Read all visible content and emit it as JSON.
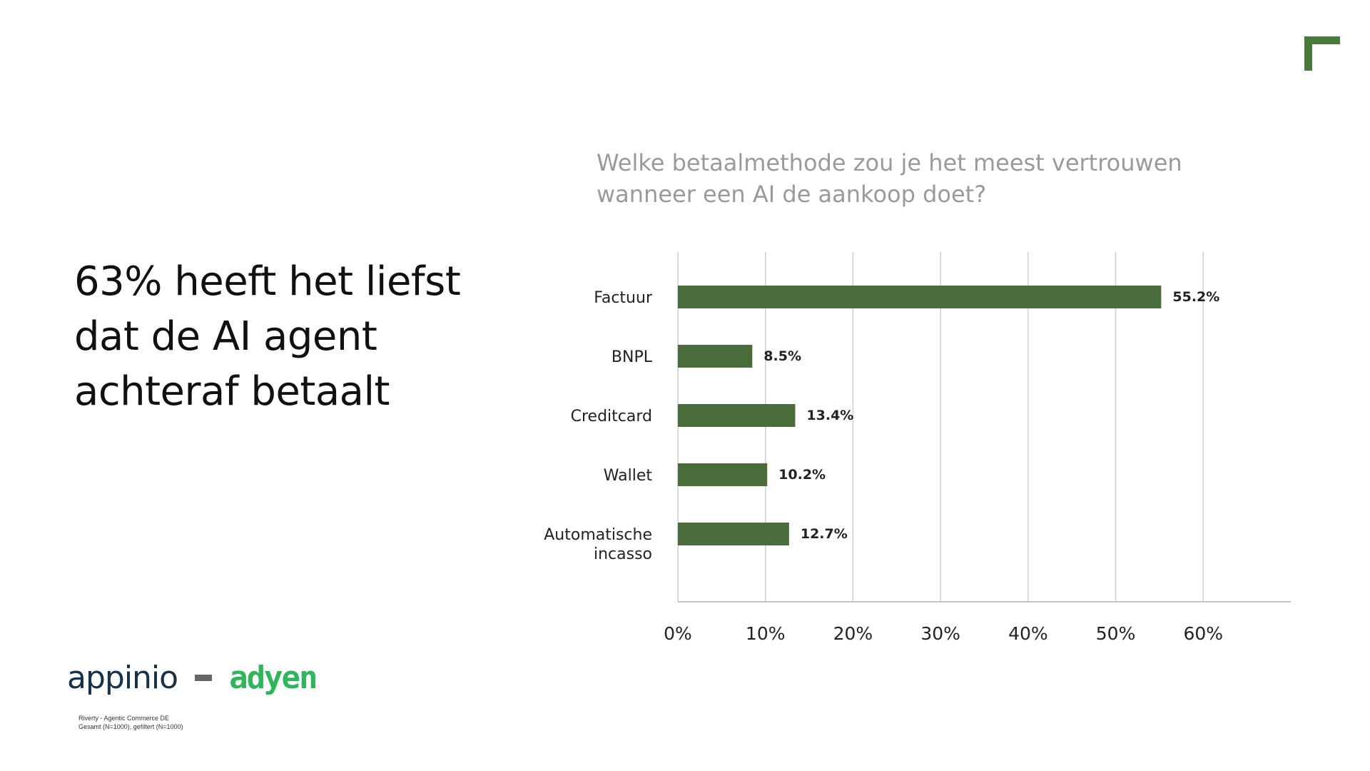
{
  "headline": [
    "63% heeft het liefst",
    "dat de AI agent",
    "achteraf betaalt"
  ],
  "chart_data": {
    "type": "bar",
    "orientation": "horizontal",
    "title": "Welke betaalmethode zou je het meest vertrouwen wanneer een AI de aankoop doet?",
    "title_lines": [
      "Welke betaalmethode zou je het meest vertrouwen",
      "wanneer een AI de aankoop doet?"
    ],
    "categories": [
      "Factuur",
      "BNPL",
      "Creditcard",
      "Wallet",
      "Automatische incasso"
    ],
    "category_lines": [
      [
        "Factuur"
      ],
      [
        "BNPL"
      ],
      [
        "Creditcard"
      ],
      [
        "Wallet"
      ],
      [
        "Automatische",
        "incasso"
      ]
    ],
    "values": [
      55.2,
      8.5,
      13.4,
      10.2,
      12.7
    ],
    "data_labels": [
      "55.2%",
      "8.5%",
      "13.4%",
      "10.2%",
      "12.7%"
    ],
    "xticks": [
      "0%",
      "10%",
      "20%",
      "30%",
      "40%",
      "50%",
      "60%"
    ],
    "xlim": [
      0,
      70
    ],
    "grid": true,
    "bar_color": "#4a6b3a"
  },
  "logos": {
    "left": "appinio",
    "right": "adyen"
  },
  "footnote": [
    "Riverty - Agentic Commerce DE",
    "Gesamt (N=1000), gefiltert (N=1000)"
  ],
  "colors": {
    "accent": "#4a7a3c",
    "adyen": "#2fb55c",
    "appinio": "#16324a"
  }
}
